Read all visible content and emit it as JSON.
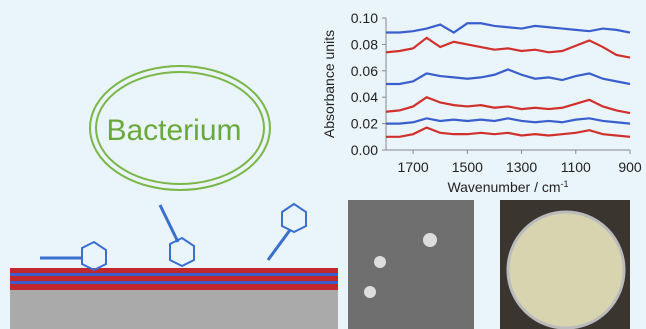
{
  "diagram": {
    "label": "Bacterium"
  },
  "chart_data": {
    "type": "line",
    "x_label": "Wavenumber / cm",
    "x_label_sup": "-1",
    "y_label": "Absorbance units",
    "x": [
      1800,
      1750,
      1700,
      1650,
      1600,
      1550,
      1500,
      1450,
      1400,
      1350,
      1300,
      1250,
      1200,
      1150,
      1100,
      1050,
      1000,
      950,
      900
    ],
    "xlim": [
      1800,
      900
    ],
    "xticks": [
      1700,
      1500,
      1300,
      1100,
      900
    ],
    "ylim": [
      0,
      0.1
    ],
    "yticks": [
      {
        "value": 0,
        "label": "0.00"
      },
      0.02,
      0.04,
      0.06,
      0.08,
      {
        "value": 0.1,
        "label": "0.10"
      }
    ],
    "series": [
      {
        "color": "#3a5fcd",
        "values": [
          0.089,
          0.089,
          0.09,
          0.092,
          0.095,
          0.089,
          0.096,
          0.096,
          0.094,
          0.093,
          0.092,
          0.094,
          0.093,
          0.092,
          0.091,
          0.09,
          0.092,
          0.091,
          0.089
        ]
      },
      {
        "color": "#d0312d",
        "values": [
          0.074,
          0.075,
          0.077,
          0.085,
          0.078,
          0.082,
          0.08,
          0.078,
          0.076,
          0.077,
          0.075,
          0.076,
          0.074,
          0.075,
          0.079,
          0.083,
          0.078,
          0.072,
          0.07
        ]
      },
      {
        "color": "#3a5fcd",
        "values": [
          0.05,
          0.05,
          0.052,
          0.058,
          0.056,
          0.055,
          0.054,
          0.055,
          0.057,
          0.061,
          0.057,
          0.054,
          0.055,
          0.053,
          0.056,
          0.058,
          0.054,
          0.052,
          0.05
        ]
      },
      {
        "color": "#d0312d",
        "values": [
          0.029,
          0.03,
          0.033,
          0.04,
          0.036,
          0.034,
          0.033,
          0.034,
          0.032,
          0.033,
          0.031,
          0.032,
          0.031,
          0.032,
          0.035,
          0.038,
          0.033,
          0.03,
          0.028
        ]
      },
      {
        "color": "#3a5fcd",
        "values": [
          0.02,
          0.02,
          0.021,
          0.024,
          0.022,
          0.023,
          0.022,
          0.023,
          0.022,
          0.024,
          0.022,
          0.021,
          0.022,
          0.021,
          0.023,
          0.024,
          0.022,
          0.021,
          0.02
        ]
      },
      {
        "color": "#d0312d",
        "values": [
          0.01,
          0.01,
          0.012,
          0.017,
          0.013,
          0.012,
          0.012,
          0.013,
          0.012,
          0.013,
          0.011,
          0.012,
          0.011,
          0.012,
          0.013,
          0.015,
          0.012,
          0.011,
          0.01
        ]
      }
    ]
  }
}
